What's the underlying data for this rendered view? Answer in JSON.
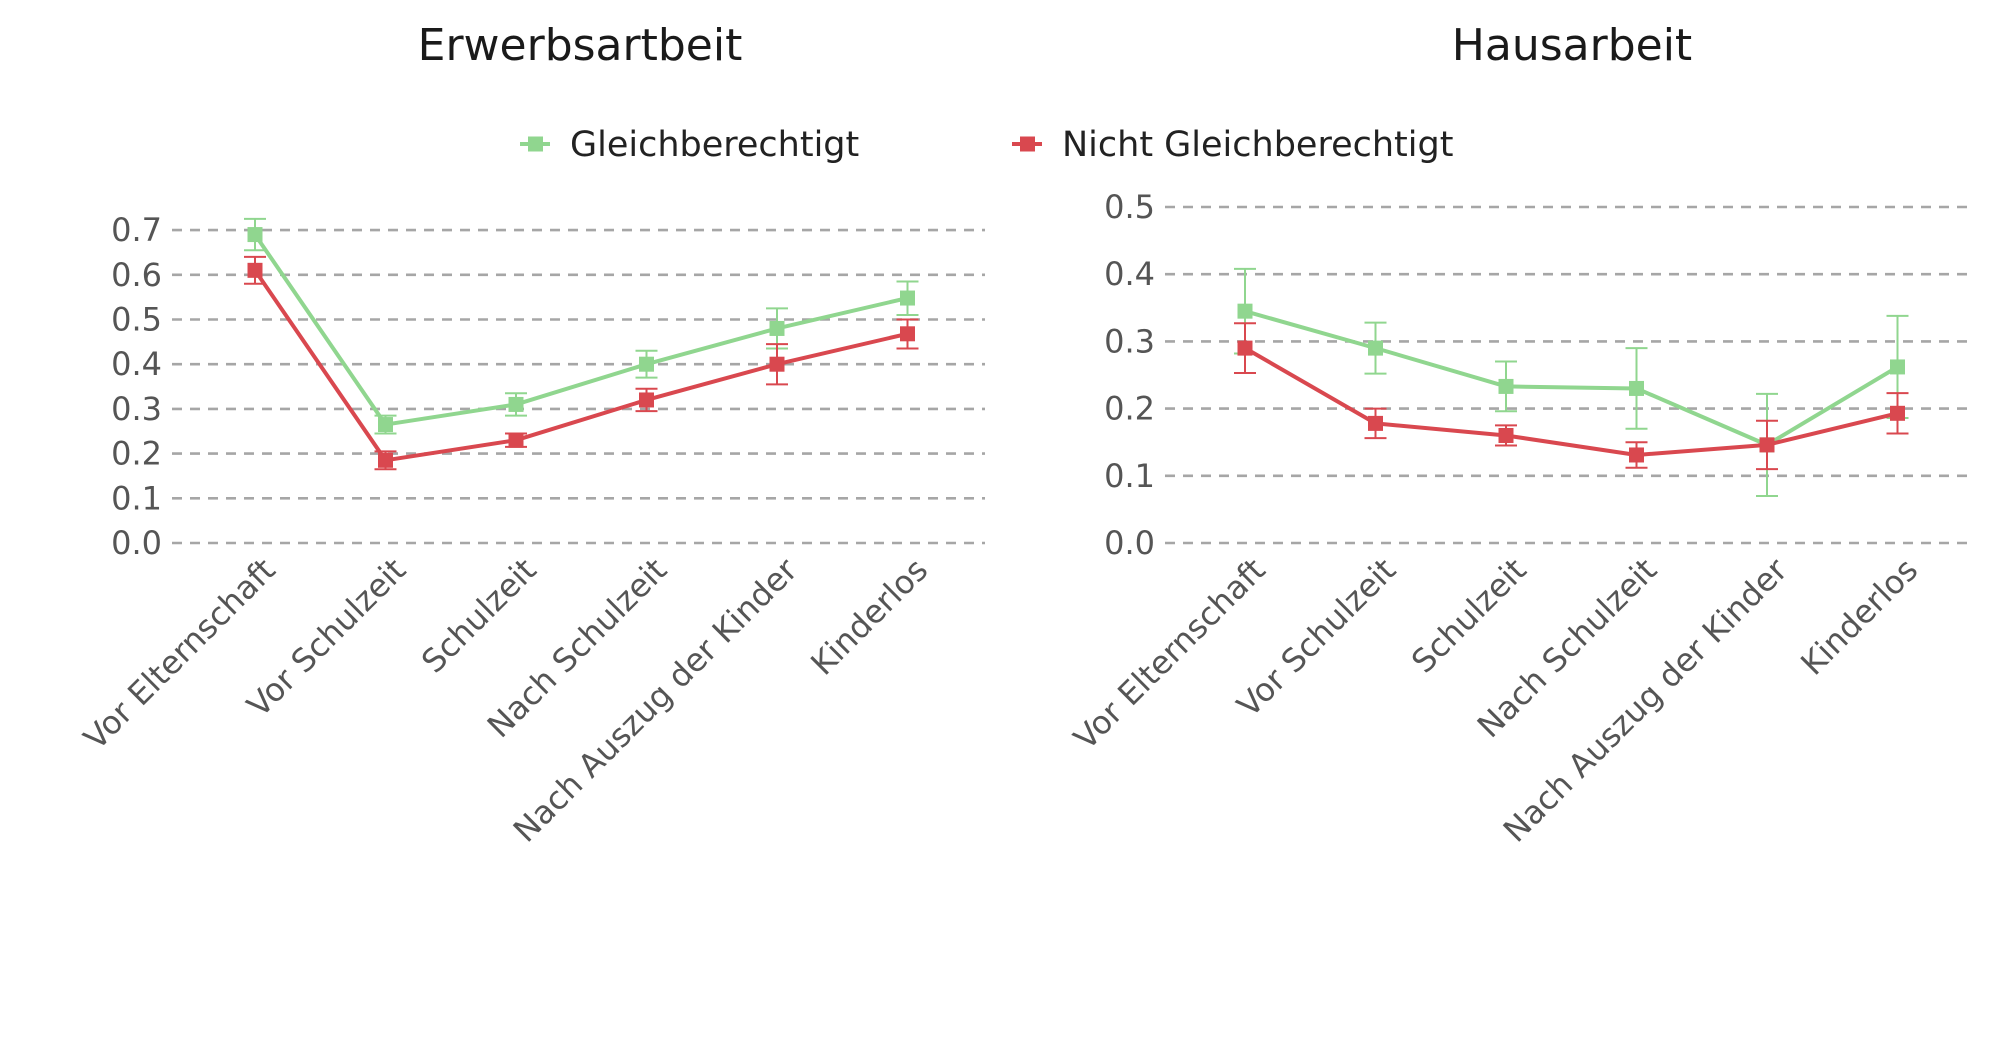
{
  "legend": {
    "items": [
      {
        "label": "Gleichberechtigt",
        "color": "#90d68f"
      },
      {
        "label": "Nicht Gleichberechtigt",
        "color": "#d9484f"
      }
    ]
  },
  "chart_data": [
    {
      "type": "line",
      "title": "Erwerbsartbeit",
      "xlabel": "",
      "ylabel": "",
      "categories": [
        "Vor Elternschaft",
        "Vor Schulzeit",
        "Schulzeit",
        "Nach Schulzeit",
        "Nach Auszug der Kinder",
        "Kinderlos"
      ],
      "yticks": [
        "0.0",
        "0.1",
        "0.2",
        "0.3",
        "0.4",
        "0.5",
        "0.6",
        "0.7"
      ],
      "ylim": [
        0,
        0.72
      ],
      "grid": true,
      "series": [
        {
          "name": "Gleichberechtigt",
          "color": "#90d68f",
          "values": [
            0.69,
            0.265,
            0.31,
            0.4,
            0.48,
            0.548
          ],
          "lower": [
            0.655,
            0.245,
            0.285,
            0.37,
            0.435,
            0.51
          ],
          "upper": [
            0.725,
            0.285,
            0.335,
            0.43,
            0.525,
            0.585
          ]
        },
        {
          "name": "Nicht Gleichberechtigt",
          "color": "#d9484f",
          "values": [
            0.61,
            0.185,
            0.23,
            0.32,
            0.4,
            0.468
          ],
          "lower": [
            0.58,
            0.165,
            0.215,
            0.295,
            0.355,
            0.435
          ],
          "upper": [
            0.64,
            0.205,
            0.245,
            0.345,
            0.445,
            0.5
          ]
        }
      ]
    },
    {
      "type": "line",
      "title": "Hausarbeit",
      "xlabel": "",
      "ylabel": "",
      "categories": [
        "Vor Elternschaft",
        "Vor Schulzeit",
        "Schulzeit",
        "Nach Schulzeit",
        "Nach Auszug der Kinder",
        "Kinderlos"
      ],
      "yticks": [
        "0.0",
        "0.1",
        "0.2",
        "0.3",
        "0.4",
        "0.5"
      ],
      "ylim": [
        0,
        0.5
      ],
      "grid": true,
      "series": [
        {
          "name": "Gleichberechtigt",
          "color": "#90d68f",
          "values": [
            0.345,
            0.29,
            0.233,
            0.23,
            0.146,
            0.262
          ],
          "lower": [
            0.282,
            0.252,
            0.196,
            0.17,
            0.07,
            0.186
          ],
          "upper": [
            0.408,
            0.328,
            0.27,
            0.29,
            0.222,
            0.338
          ]
        },
        {
          "name": "Nicht Gleichberechtigt",
          "color": "#d9484f",
          "values": [
            0.29,
            0.178,
            0.16,
            0.131,
            0.146,
            0.193
          ],
          "lower": [
            0.253,
            0.156,
            0.145,
            0.112,
            0.11,
            0.163
          ],
          "upper": [
            0.327,
            0.2,
            0.175,
            0.15,
            0.182,
            0.223
          ]
        }
      ]
    }
  ]
}
